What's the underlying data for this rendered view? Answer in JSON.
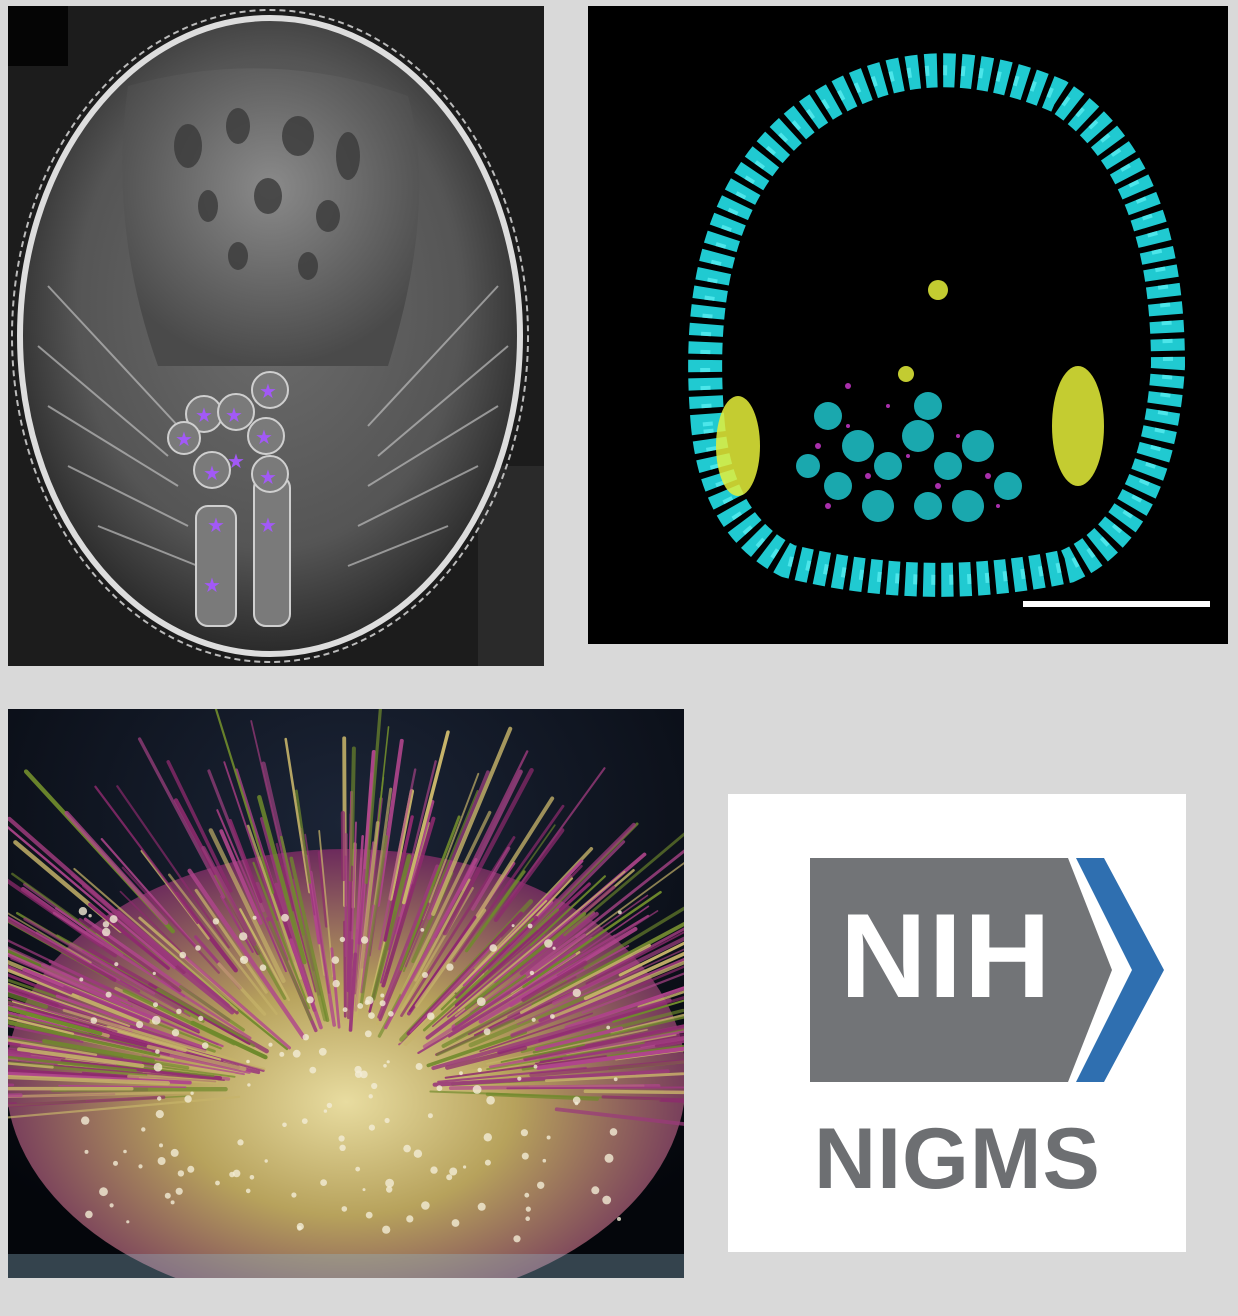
{
  "panels": {
    "sem": {
      "subject": "sea urchin embryo scanning electron micrograph",
      "marker_icon": "star-icon",
      "marker_color": "#a259f7",
      "marker_count": 12
    },
    "confocal": {
      "subject": "embryo fluorescence confocal image",
      "colors": {
        "nuclei": "#23e0e8",
        "highlight": "#e6f03a",
        "magenta": "#d43bd6"
      }
    },
    "urchin": {
      "subject": "green sea urchin photo"
    },
    "logo": {
      "mark": "NIH",
      "name": "NIGMS",
      "colors": {
        "gray": "#727477",
        "blue": "#2f6fb0",
        "text": "#6d6f72"
      }
    }
  }
}
